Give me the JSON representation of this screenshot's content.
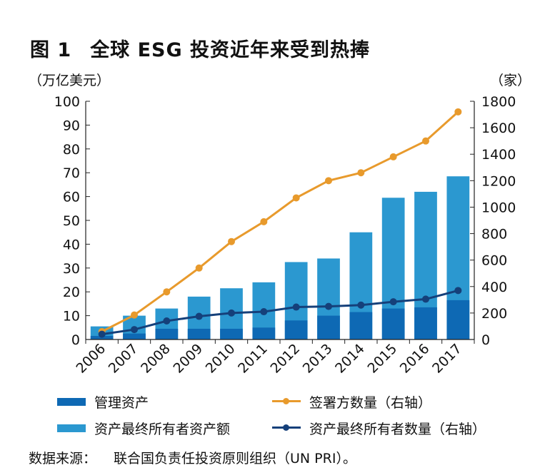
{
  "figure": {
    "number": "图 1",
    "title": "全球 ESG 投资近年来受到热捧",
    "source_label": "数据来源：",
    "source_text": "联合国负责任投资原则组织（UN PRI）。"
  },
  "colors": {
    "assets_under_management": "#0e69b4",
    "asset_owner_assets": "#2b98d0",
    "signatories": "#e89a2c",
    "asset_owners_count": "#15407a"
  },
  "chart_data": {
    "type": "bar",
    "categories": [
      "2006",
      "2007",
      "2008",
      "2009",
      "2010",
      "2011",
      "2012",
      "2013",
      "2014",
      "2015",
      "2016",
      "2017"
    ],
    "ylabel": "（万亿美元）",
    "y2label": "（家）",
    "ylim": [
      0,
      100
    ],
    "y2lim": [
      0,
      1800
    ],
    "yticks": [
      0,
      10,
      20,
      30,
      40,
      50,
      60,
      70,
      80,
      90,
      100
    ],
    "y2ticks": [
      0,
      200,
      400,
      600,
      800,
      1000,
      1200,
      1400,
      1600,
      1800
    ],
    "grid": false,
    "series": [
      {
        "name": "管理资产",
        "type": "bar",
        "axis": "left",
        "values": [
          1.5,
          2.5,
          4.5,
          4.5,
          4.5,
          5,
          8,
          10,
          11.5,
          13,
          13.5,
          16.5
        ]
      },
      {
        "name": "资产最终所有者资产额",
        "type": "bar",
        "axis": "left",
        "values": [
          5.5,
          10,
          13,
          18,
          21.5,
          24,
          32.5,
          34,
          45,
          59.5,
          62,
          68.5
        ]
      },
      {
        "name": "签署方数量（右轴）",
        "type": "line",
        "axis": "right",
        "values": [
          60,
          185,
          360,
          540,
          740,
          890,
          1070,
          1200,
          1260,
          1380,
          1500,
          1720
        ]
      },
      {
        "name": "资产最终所有者数量（右轴）",
        "type": "line",
        "axis": "right",
        "values": [
          40,
          75,
          140,
          175,
          200,
          210,
          245,
          250,
          260,
          285,
          305,
          370
        ]
      }
    ]
  }
}
